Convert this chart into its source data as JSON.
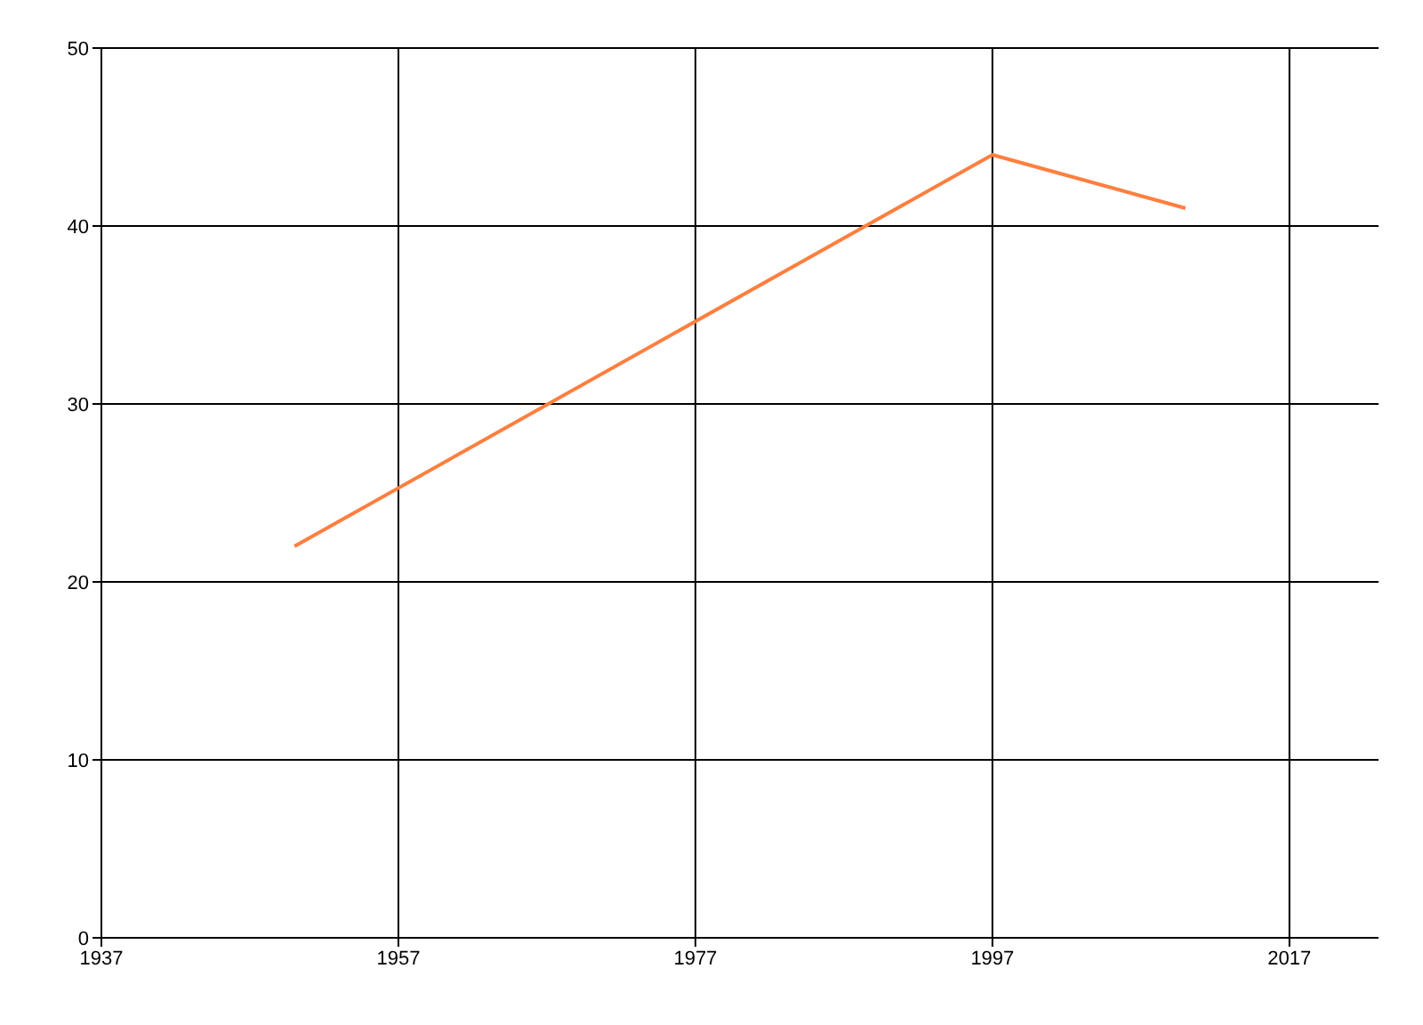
{
  "chart_data": {
    "type": "line",
    "x": [
      1950,
      1997,
      2010
    ],
    "series": [
      {
        "color": "#ff7f3f",
        "values": [
          22,
          44,
          41
        ]
      }
    ],
    "xlim": [
      1937,
      2023
    ],
    "xticks": [
      1937,
      1957,
      1977,
      1997,
      2017
    ],
    "ylim": [
      0,
      50
    ],
    "yticks": [
      0,
      10,
      20,
      30,
      40,
      50
    ],
    "grid": true,
    "legend": false,
    "marker": "none",
    "line_style": "solid"
  }
}
